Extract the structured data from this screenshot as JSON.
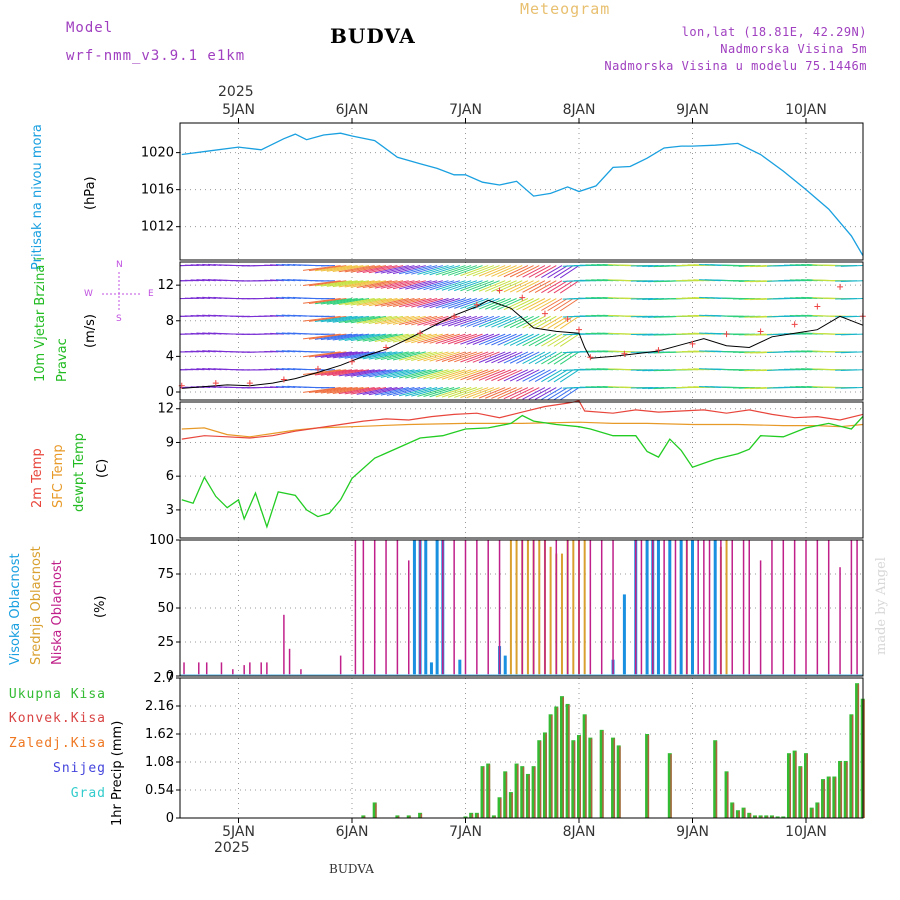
{
  "header": {
    "model_label": "Model",
    "model_name": "wrf-nmm_v3.9.1 e1km",
    "station": "BUDVA",
    "product": "Meteogram",
    "coords": "lon,lat (18.81E, 42.29N)",
    "elevation": "Nadmorska Visina 5m",
    "model_elevation": "Nadmorska Visina u modelu 75.1446m",
    "year_top": "2025",
    "year_bottom": "2025",
    "footer_station": "BUDVA",
    "credit": "made by Angel"
  },
  "colors": {
    "pressure": "#1aa0e0",
    "temp2m": "#e8463c",
    "sfc": "#e89a28",
    "dewpt": "#22cc22",
    "cloud_high": "#1a90e0",
    "cloud_mid": "#d9a030",
    "cloud_low": "#c0208a",
    "precip_total": "#33bb33",
    "precip_conv": "#d94444",
    "precip_strat": "#ee7722",
    "snow": "#4444dd",
    "graupel": "#33cccc",
    "wind_speed": "#000000",
    "gust": "#ee4444"
  },
  "chart_data": [
    {
      "type": "line",
      "panel": "pressure",
      "label_left": "Pritisak na nivou mora",
      "ylabel": "(hPa)",
      "x_ticks": [
        "5JAN",
        "6JAN",
        "7JAN",
        "8JAN",
        "9JAN",
        "10JAN"
      ],
      "y_ticks": [
        1012,
        1016,
        1020
      ],
      "ylim": [
        1008.4,
        1023.2
      ],
      "x_unit": "days since 5JAN 00Z",
      "x_range": [
        -0.5,
        5.5
      ],
      "series": [
        {
          "x": [
            -0.5,
            -0.25,
            0,
            0.2,
            0.4,
            0.5,
            0.6,
            0.75,
            0.9,
            1.0,
            1.2,
            1.4,
            1.6,
            1.75,
            1.9,
            2.0,
            2.15,
            2.3,
            2.45,
            2.6,
            2.75,
            2.9,
            3.0,
            3.15,
            3.3,
            3.45,
            3.6,
            3.75,
            3.9,
            4.0,
            4.2,
            4.4,
            4.6,
            4.8,
            5.0,
            5.2,
            5.4,
            5.5
          ],
          "y": [
            1019.8,
            1020.2,
            1020.6,
            1020.3,
            1021.5,
            1022.0,
            1021.4,
            1021.9,
            1022.1,
            1021.8,
            1021.3,
            1019.5,
            1018.8,
            1018.3,
            1017.6,
            1017.6,
            1016.8,
            1016.5,
            1016.9,
            1015.3,
            1015.6,
            1016.3,
            1015.8,
            1016.4,
            1018.4,
            1018.5,
            1019.4,
            1020.5,
            1020.7,
            1020.7,
            1020.8,
            1021.0,
            1019.8,
            1018.0,
            1016.0,
            1013.9,
            1011.0,
            1008.9
          ]
        }
      ]
    },
    {
      "type": "line",
      "panel": "wind",
      "label_left": "10m Vjetar Brzina i Pravac",
      "ylabel": "(m/s)",
      "compass": {
        "north": "N",
        "east": "E",
        "west": "W",
        "south": "S"
      },
      "y_ticks": [
        0,
        4,
        8,
        12
      ],
      "ylim": [
        -0.9,
        14.6
      ],
      "series": [
        {
          "name": "speed",
          "x": [
            -0.5,
            -0.3,
            -0.1,
            0.1,
            0.3,
            0.5,
            0.7,
            0.9,
            1.1,
            1.3,
            1.5,
            1.7,
            1.9,
            2.1,
            2.2,
            2.4,
            2.6,
            2.8,
            3.0,
            3.05,
            3.1,
            3.3,
            3.5,
            3.7,
            3.9,
            4.1,
            4.3,
            4.5,
            4.7,
            4.9,
            5.1,
            5.3,
            5.5
          ],
          "y": [
            0.4,
            0.6,
            0.8,
            0.7,
            1.0,
            1.5,
            2.2,
            3.0,
            4.0,
            4.8,
            6.0,
            7.3,
            8.6,
            9.6,
            10.3,
            9.4,
            7.2,
            6.8,
            6.6,
            5.0,
            3.8,
            4.0,
            4.3,
            4.6,
            5.3,
            6.0,
            5.2,
            5.0,
            6.2,
            6.6,
            7.0,
            8.5,
            7.5
          ]
        },
        {
          "name": "gust",
          "x": [
            -0.5,
            -0.2,
            0.1,
            0.4,
            0.7,
            1.0,
            1.3,
            1.6,
            1.9,
            2.1,
            2.3,
            2.5,
            2.7,
            2.9,
            3.0,
            3.1,
            3.4,
            3.7,
            4.0,
            4.3,
            4.6,
            4.9,
            5.1,
            5.3,
            5.5
          ],
          "y": [
            0.7,
            1.0,
            1.0,
            1.4,
            2.6,
            3.4,
            5.0,
            6.6,
            8.5,
            9.8,
            11.4,
            10.6,
            8.8,
            8.2,
            7.0,
            3.9,
            4.3,
            4.7,
            5.4,
            6.5,
            6.8,
            7.6,
            9.6,
            11.8,
            8.5
          ]
        }
      ]
    },
    {
      "type": "line",
      "panel": "temperature",
      "labels_left": [
        "2m Temp",
        "SFC Temp",
        "dewpt Temp"
      ],
      "ylabel": "(C)",
      "y_ticks": [
        3,
        6,
        9,
        12
      ],
      "ylim": [
        0.5,
        12.6
      ],
      "series": [
        {
          "name": "2m Temp",
          "x": [
            -0.5,
            -0.3,
            -0.1,
            0.1,
            0.3,
            0.5,
            0.7,
            0.9,
            1.1,
            1.3,
            1.5,
            1.7,
            1.9,
            2.1,
            2.3,
            2.5,
            2.7,
            2.9,
            3.0,
            3.05,
            3.3,
            3.5,
            3.7,
            3.9,
            4.1,
            4.3,
            4.5,
            4.7,
            4.9,
            5.1,
            5.3,
            5.5
          ],
          "y": [
            9.3,
            9.6,
            9.5,
            9.4,
            9.6,
            10.0,
            10.3,
            10.6,
            10.9,
            11.1,
            11.0,
            11.3,
            11.5,
            11.6,
            11.2,
            11.7,
            12.2,
            12.5,
            12.7,
            11.8,
            11.6,
            11.9,
            11.7,
            11.8,
            11.9,
            11.6,
            11.9,
            11.5,
            11.2,
            11.3,
            11.0,
            11.5
          ]
        },
        {
          "name": "SFC Temp",
          "x": [
            -0.5,
            -0.3,
            -0.1,
            0.1,
            0.3,
            0.5,
            0.7,
            1.0,
            1.5,
            2.0,
            2.5,
            3.0,
            3.3,
            3.6,
            4.0,
            4.4,
            4.8,
            5.1,
            5.3,
            5.5
          ],
          "y": [
            10.2,
            10.3,
            9.7,
            9.5,
            9.8,
            10.1,
            10.3,
            10.4,
            10.6,
            10.7,
            10.7,
            10.8,
            10.7,
            10.7,
            10.6,
            10.6,
            10.5,
            10.5,
            10.4,
            10.6
          ]
        },
        {
          "name": "dewpt Temp",
          "x": [
            -0.5,
            -0.4,
            -0.3,
            -0.2,
            -0.1,
            0.0,
            0.05,
            0.15,
            0.25,
            0.35,
            0.5,
            0.6,
            0.7,
            0.8,
            0.9,
            1.0,
            1.2,
            1.4,
            1.6,
            1.8,
            2.0,
            2.2,
            2.4,
            2.5,
            2.6,
            2.8,
            3.0,
            3.1,
            3.3,
            3.5,
            3.6,
            3.7,
            3.8,
            3.9,
            4.0,
            4.2,
            4.4,
            4.5,
            4.6,
            4.8,
            5.0,
            5.2,
            5.4,
            5.5
          ],
          "y": [
            3.9,
            3.6,
            5.9,
            4.2,
            3.2,
            3.9,
            2.2,
            4.5,
            1.5,
            4.6,
            4.3,
            3.0,
            2.4,
            2.7,
            3.9,
            5.8,
            7.6,
            8.5,
            9.4,
            9.6,
            10.2,
            10.3,
            10.7,
            11.4,
            10.9,
            10.6,
            10.4,
            10.2,
            9.6,
            9.6,
            8.2,
            7.7,
            9.3,
            8.3,
            6.8,
            7.5,
            8.0,
            8.4,
            9.6,
            9.5,
            10.3,
            10.7,
            10.2,
            11.3
          ]
        }
      ]
    },
    {
      "type": "bar",
      "panel": "clouds",
      "labels_left": [
        "Visoka Oblacnost",
        "Srednja Oblacnost",
        "Niska Oblacnost"
      ],
      "ylabel": "(%)",
      "y_ticks": [
        0,
        25,
        50,
        75,
        100
      ],
      "ylim": [
        0,
        100
      ],
      "series": [
        {
          "name": "Visoka Oblacnost",
          "x": [
            1.55,
            1.6,
            1.65,
            1.7,
            1.75,
            1.8,
            1.95,
            2.3,
            2.35,
            3.3,
            3.4,
            3.5,
            3.6,
            3.65,
            3.7,
            3.8,
            3.9,
            4.0,
            4.2
          ],
          "values": [
            100,
            100,
            100,
            10,
            100,
            100,
            12,
            22,
            15,
            12,
            60,
            100,
            100,
            100,
            100,
            100,
            100,
            100,
            100
          ]
        },
        {
          "name": "Srednja Oblacnost",
          "x": [
            2.4,
            2.45,
            2.5,
            2.55,
            2.6,
            2.65,
            2.7,
            2.75,
            2.8,
            2.85,
            2.9,
            2.95,
            3.0,
            3.05,
            3.95,
            4.25,
            4.3
          ],
          "values": [
            100,
            100,
            100,
            100,
            100,
            100,
            100,
            95,
            90,
            90,
            100,
            100,
            100,
            100,
            100,
            95,
            100
          ]
        },
        {
          "name": "Niska Oblacnost",
          "x": [
            -0.48,
            -0.35,
            -0.28,
            -0.15,
            -0.05,
            0.05,
            0.1,
            0.2,
            0.25,
            0.4,
            0.45,
            0.55,
            0.9,
            1.03,
            1.1,
            1.2,
            1.3,
            1.4,
            1.5,
            1.6,
            1.8,
            1.9,
            2.0,
            2.1,
            2.2,
            2.3,
            2.5,
            2.6,
            2.7,
            2.8,
            2.9,
            3.0,
            3.1,
            3.2,
            3.3,
            3.5,
            3.55,
            3.65,
            3.75,
            3.85,
            3.95,
            4.05,
            4.1,
            4.15,
            4.25,
            4.35,
            4.45,
            4.5,
            4.6,
            4.7,
            4.8,
            4.9,
            5.0,
            5.1,
            5.2,
            5.3,
            5.4,
            5.45
          ],
          "values": [
            10,
            10,
            10,
            10,
            5,
            8,
            10,
            10,
            10,
            45,
            20,
            5,
            15,
            100,
            100,
            100,
            100,
            100,
            85,
            100,
            100,
            100,
            100,
            100,
            100,
            100,
            100,
            100,
            100,
            100,
            100,
            100,
            100,
            100,
            100,
            100,
            100,
            100,
            100,
            100,
            100,
            100,
            100,
            100,
            100,
            100,
            100,
            100,
            85,
            100,
            100,
            100,
            100,
            100,
            100,
            80,
            100,
            100
          ]
        }
      ]
    },
    {
      "type": "bar",
      "panel": "precip",
      "labels_left": [
        "Ukupna Kisa",
        "Konvek.Kisa",
        "Zaledj.Kisa",
        "Snijeg",
        "Grad"
      ],
      "ylabel": "1hr Precip (mm)",
      "y_ticks": [
        "0",
        "0.54",
        "1.08",
        "1.62",
        "2.16",
        "2.7"
      ],
      "ylim": [
        0,
        2.7
      ],
      "x_ticks": [
        "5JAN",
        "6JAN",
        "7JAN",
        "8JAN",
        "9JAN",
        "10JAN"
      ],
      "series": [
        {
          "name": "Ukupna Kisa",
          "x": [
            1.1,
            1.2,
            1.4,
            1.5,
            1.6,
            2.0,
            2.05,
            2.1,
            2.15,
            2.2,
            2.25,
            2.3,
            2.35,
            2.4,
            2.45,
            2.5,
            2.55,
            2.6,
            2.65,
            2.7,
            2.75,
            2.8,
            2.85,
            2.9,
            2.95,
            3.0,
            3.05,
            3.1,
            3.2,
            3.3,
            3.35,
            3.6,
            3.8,
            4.2,
            4.3,
            4.35,
            4.4,
            4.45,
            4.5,
            4.55,
            4.6,
            4.65,
            4.7,
            4.75,
            4.8,
            4.85,
            4.9,
            4.95,
            5.0,
            5.05,
            5.1,
            5.15,
            5.2,
            5.25,
            5.3,
            5.35,
            5.4,
            5.45,
            5.5
          ],
          "values": [
            0.05,
            0.3,
            0.05,
            0.05,
            0.1,
            0.03,
            0.1,
            0.1,
            1.0,
            1.05,
            0.05,
            0.4,
            0.9,
            0.5,
            1.05,
            1.0,
            0.85,
            1.0,
            1.5,
            1.65,
            2.0,
            2.15,
            2.35,
            2.2,
            1.5,
            1.6,
            2.0,
            1.55,
            1.7,
            1.55,
            1.4,
            1.62,
            1.25,
            1.5,
            0.9,
            0.3,
            0.15,
            0.2,
            0.1,
            0.05,
            0.05,
            0.05,
            0.05,
            0.03,
            0.03,
            1.25,
            1.3,
            1.0,
            1.25,
            0.2,
            0.3,
            0.75,
            0.8,
            0.8,
            1.1,
            1.1,
            2.0,
            2.6,
            2.3
          ]
        }
      ]
    }
  ]
}
